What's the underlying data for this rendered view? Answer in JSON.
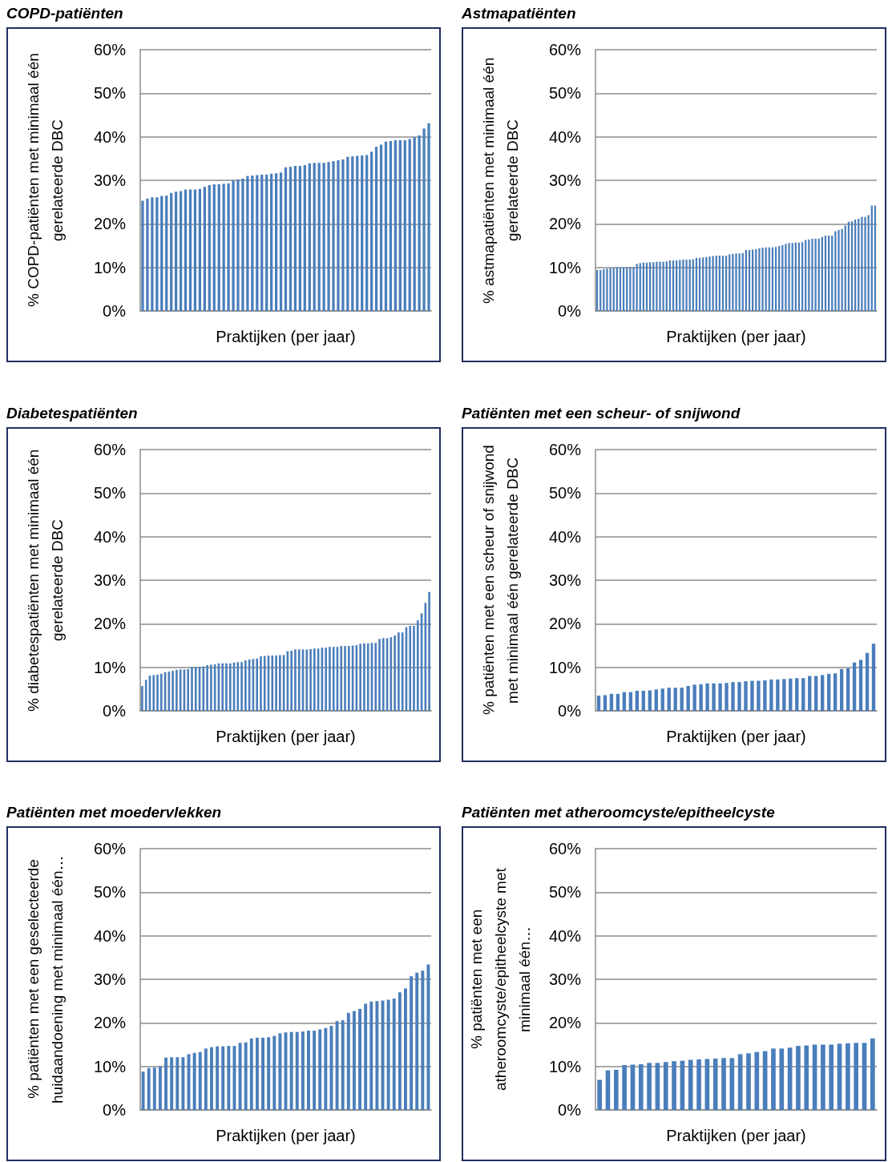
{
  "chart_data": [
    {
      "type": "bar",
      "title": "COPD-patiënten",
      "ylabel": "% COPD-patiënten met minimaal één gerelateerde DBC",
      "xlabel": "Praktijken (per jaar)",
      "color": "#4a7ebb",
      "grid": "y",
      "ylim": [
        0,
        60
      ],
      "yticks": [
        {
          "value": 0,
          "label": "0%"
        },
        {
          "value": 10,
          "label": "10%"
        },
        {
          "value": 20,
          "label": "20%"
        },
        {
          "value": 30,
          "label": "30%"
        },
        {
          "value": 40,
          "label": "40%"
        },
        {
          "value": 50,
          "label": "50%"
        },
        {
          "value": 60,
          "label": "60%"
        }
      ],
      "categories": [
        null,
        null,
        null,
        null,
        null,
        null,
        null,
        null,
        null,
        null,
        null,
        null,
        null,
        null,
        null,
        null,
        null,
        null,
        null,
        null,
        null,
        null,
        null,
        null,
        null,
        null,
        null,
        null,
        null,
        null,
        null,
        null,
        null,
        null,
        null,
        null,
        null,
        null,
        null,
        null,
        null,
        null,
        null,
        null,
        null,
        null,
        null,
        null,
        null,
        null,
        null,
        null,
        null,
        null,
        null,
        null,
        null,
        null,
        null,
        null,
        null
      ],
      "values": [
        25.3,
        25.8,
        26.1,
        26.1,
        26.4,
        26.5,
        27.1,
        27.4,
        27.5,
        27.9,
        27.9,
        27.9,
        28.0,
        28.5,
        28.9,
        29.1,
        29.1,
        29.2,
        29.3,
        30.0,
        30.2,
        30.4,
        31.0,
        31.1,
        31.2,
        31.3,
        31.3,
        31.5,
        31.6,
        31.8,
        33.0,
        33.1,
        33.3,
        33.3,
        33.5,
        33.9,
        34.0,
        34.0,
        34.0,
        34.2,
        34.4,
        34.6,
        34.8,
        35.4,
        35.5,
        35.6,
        35.7,
        35.8,
        36.6,
        37.7,
        38.2,
        38.9,
        39.0,
        39.2,
        39.2,
        39.2,
        39.5,
        39.9,
        40.3,
        41.9,
        43.1
      ]
    },
    {
      "type": "bar",
      "title": "Astmapatiënten",
      "ylabel": "% astmapatiënten met minimaal één gerelateerde DBC",
      "xlabel": "Praktijken (per jaar)",
      "color": "#4a7ebb",
      "grid": "y",
      "ylim": [
        0,
        60
      ],
      "yticks": [
        {
          "value": 0,
          "label": "0%"
        },
        {
          "value": 10,
          "label": "10%"
        },
        {
          "value": 20,
          "label": "20%"
        },
        {
          "value": 30,
          "label": "30%"
        },
        {
          "value": 40,
          "label": "40%"
        },
        {
          "value": 50,
          "label": "50%"
        },
        {
          "value": 60,
          "label": "60%"
        }
      ],
      "categories": [
        null,
        null,
        null,
        null,
        null,
        null,
        null,
        null,
        null,
        null,
        null,
        null,
        null,
        null,
        null,
        null,
        null,
        null,
        null,
        null,
        null,
        null,
        null,
        null,
        null,
        null,
        null,
        null,
        null,
        null,
        null,
        null,
        null,
        null,
        null,
        null,
        null,
        null,
        null,
        null,
        null,
        null,
        null,
        null,
        null,
        null,
        null,
        null,
        null,
        null,
        null,
        null,
        null,
        null,
        null,
        null,
        null,
        null,
        null,
        null,
        null,
        null,
        null,
        null,
        null,
        null,
        null,
        null,
        null,
        null,
        null,
        null,
        null,
        null,
        null,
        null,
        null,
        null,
        null,
        null,
        null,
        null,
        null,
        null,
        null
      ],
      "values": [
        9.4,
        9.4,
        9.6,
        9.7,
        9.8,
        9.9,
        10.0,
        10.0,
        10.0,
        10.0,
        10.0,
        10.1,
        10.8,
        11.0,
        11.1,
        11.1,
        11.2,
        11.2,
        11.3,
        11.3,
        11.3,
        11.4,
        11.6,
        11.6,
        11.6,
        11.7,
        11.8,
        11.8,
        11.8,
        11.9,
        12.2,
        12.2,
        12.3,
        12.4,
        12.5,
        12.6,
        12.7,
        12.7,
        12.7,
        12.7,
        13.0,
        13.1,
        13.2,
        13.2,
        13.3,
        14.0,
        14.0,
        14.1,
        14.2,
        14.4,
        14.5,
        14.6,
        14.6,
        14.6,
        14.7,
        14.9,
        15.1,
        15.4,
        15.6,
        15.6,
        15.7,
        15.7,
        15.8,
        16.3,
        16.4,
        16.6,
        16.6,
        16.6,
        17.0,
        17.3,
        17.3,
        17.3,
        18.3,
        18.6,
        18.8,
        19.6,
        20.5,
        20.6,
        21.0,
        21.2,
        21.6,
        21.6,
        22.0,
        24.2,
        24.2
      ]
    },
    {
      "type": "bar",
      "title": "Diabetespatiënten",
      "ylabel": "% diabetespatiënten met minimaal één gerelateerde DBC",
      "xlabel": "Praktijken (per jaar)",
      "color": "#4a7ebb",
      "grid": "y",
      "ylim": [
        0,
        60
      ],
      "yticks": [
        {
          "value": 0,
          "label": "0%"
        },
        {
          "value": 10,
          "label": "10%"
        },
        {
          "value": 20,
          "label": "20%"
        },
        {
          "value": 30,
          "label": "30%"
        },
        {
          "value": 40,
          "label": "40%"
        },
        {
          "value": 50,
          "label": "50%"
        },
        {
          "value": 60,
          "label": "60%"
        }
      ],
      "categories": [
        null,
        null,
        null,
        null,
        null,
        null,
        null,
        null,
        null,
        null,
        null,
        null,
        null,
        null,
        null,
        null,
        null,
        null,
        null,
        null,
        null,
        null,
        null,
        null,
        null,
        null,
        null,
        null,
        null,
        null,
        null,
        null,
        null,
        null,
        null,
        null,
        null,
        null,
        null,
        null,
        null,
        null,
        null,
        null,
        null,
        null,
        null,
        null,
        null,
        null,
        null,
        null,
        null,
        null,
        null,
        null,
        null,
        null,
        null,
        null,
        null,
        null,
        null,
        null,
        null,
        null,
        null,
        null,
        null,
        null,
        null,
        null,
        null,
        null,
        null,
        null
      ],
      "values": [
        5.7,
        7.1,
        8.1,
        8.2,
        8.3,
        8.5,
        8.9,
        9.0,
        9.2,
        9.4,
        9.5,
        9.5,
        9.6,
        10.1,
        10.1,
        10.1,
        10.2,
        10.5,
        10.6,
        10.7,
        10.9,
        10.9,
        10.9,
        10.9,
        11.1,
        11.2,
        11.2,
        11.6,
        11.8,
        11.9,
        12.0,
        12.5,
        12.6,
        12.7,
        12.7,
        12.7,
        12.8,
        12.8,
        13.7,
        13.8,
        14.1,
        14.1,
        14.1,
        14.1,
        14.2,
        14.3,
        14.3,
        14.5,
        14.5,
        14.7,
        14.7,
        14.7,
        14.9,
        14.9,
        14.9,
        15.0,
        15.1,
        15.4,
        15.5,
        15.5,
        15.6,
        15.6,
        16.5,
        16.7,
        16.7,
        16.9,
        17.3,
        18.0,
        18.0,
        19.2,
        19.5,
        19.5,
        20.8,
        22.4,
        24.8,
        27.3
      ]
    },
    {
      "type": "bar",
      "title": "Patiënten met een scheur- of snijwond",
      "ylabel": "% patiënten met een scheur of snijwond met minimaal één gerelateerde DBC",
      "xlabel": "Praktijken (per jaar)",
      "color": "#4a7ebb",
      "grid": "y",
      "ylim": [
        0,
        60
      ],
      "yticks": [
        {
          "value": 0,
          "label": "0%"
        },
        {
          "value": 10,
          "label": "10%"
        },
        {
          "value": 20,
          "label": "20%"
        },
        {
          "value": 30,
          "label": "30%"
        },
        {
          "value": 40,
          "label": "40%"
        },
        {
          "value": 50,
          "label": "50%"
        },
        {
          "value": 60,
          "label": "60%"
        }
      ],
      "categories": [
        null,
        null,
        null,
        null,
        null,
        null,
        null,
        null,
        null,
        null,
        null,
        null,
        null,
        null,
        null,
        null,
        null,
        null,
        null,
        null,
        null,
        null,
        null,
        null,
        null,
        null,
        null,
        null,
        null,
        null,
        null,
        null,
        null,
        null,
        null,
        null,
        null,
        null,
        null,
        null,
        null,
        null,
        null,
        null
      ],
      "values": [
        3.5,
        3.6,
        3.9,
        3.9,
        4.3,
        4.3,
        4.6,
        4.6,
        4.7,
        4.9,
        5.1,
        5.3,
        5.3,
        5.3,
        5.7,
        6.0,
        6.1,
        6.3,
        6.3,
        6.3,
        6.4,
        6.6,
        6.6,
        6.8,
        6.9,
        6.9,
        7.0,
        7.2,
        7.2,
        7.3,
        7.4,
        7.5,
        7.5,
        8.0,
        8.0,
        8.2,
        8.5,
        8.6,
        9.6,
        9.8,
        11.1,
        11.7,
        13.3,
        15.4
      ]
    },
    {
      "type": "bar",
      "title": "Patiënten met moedervlekken",
      "ylabel": "% patiënten met een geselecteerde huidaandoening met minimaal één…",
      "xlabel": "Praktijken (per jaar)",
      "color": "#4a7ebb",
      "grid": "y",
      "ylim": [
        0,
        60
      ],
      "yticks": [
        {
          "value": 0,
          "label": "0%"
        },
        {
          "value": 10,
          "label": "10%"
        },
        {
          "value": 20,
          "label": "20%"
        },
        {
          "value": 30,
          "label": "30%"
        },
        {
          "value": 40,
          "label": "40%"
        },
        {
          "value": 50,
          "label": "50%"
        },
        {
          "value": 60,
          "label": "60%"
        }
      ],
      "categories": [
        null,
        null,
        null,
        null,
        null,
        null,
        null,
        null,
        null,
        null,
        null,
        null,
        null,
        null,
        null,
        null,
        null,
        null,
        null,
        null,
        null,
        null,
        null,
        null,
        null,
        null,
        null,
        null,
        null,
        null,
        null,
        null,
        null,
        null,
        null,
        null,
        null,
        null,
        null,
        null,
        null,
        null,
        null,
        null,
        null,
        null,
        null,
        null,
        null,
        null,
        null
      ],
      "values": [
        8.8,
        9.6,
        9.7,
        10.0,
        12.0,
        12.1,
        12.1,
        12.1,
        12.8,
        13.1,
        13.3,
        14.1,
        14.4,
        14.6,
        14.6,
        14.7,
        14.7,
        15.4,
        15.5,
        16.4,
        16.6,
        16.6,
        16.7,
        17.0,
        17.6,
        17.8,
        17.9,
        17.9,
        18.0,
        18.2,
        18.2,
        18.5,
        18.8,
        19.3,
        20.4,
        20.6,
        22.3,
        22.7,
        23.2,
        24.4,
        24.9,
        25.0,
        25.1,
        25.3,
        25.6,
        27.0,
        27.9,
        30.7,
        31.5,
        32.0,
        33.4
      ]
    },
    {
      "type": "bar",
      "title": "Patiënten met atheroomcyste/epitheelcyste",
      "ylabel": "% patiënten met een atheroomcyste/epitheelcyste met minimaal één…",
      "xlabel": "Praktijken (per jaar)",
      "color": "#4a7ebb",
      "grid": "y",
      "ylim": [
        0,
        60
      ],
      "yticks": [
        {
          "value": 0,
          "label": "0%"
        },
        {
          "value": 10,
          "label": "10%"
        },
        {
          "value": 20,
          "label": "20%"
        },
        {
          "value": 30,
          "label": "30%"
        },
        {
          "value": 40,
          "label": "40%"
        },
        {
          "value": 50,
          "label": "50%"
        },
        {
          "value": 60,
          "label": "60%"
        }
      ],
      "categories": [
        null,
        null,
        null,
        null,
        null,
        null,
        null,
        null,
        null,
        null,
        null,
        null,
        null,
        null,
        null,
        null,
        null,
        null,
        null,
        null,
        null,
        null,
        null,
        null,
        null,
        null,
        null,
        null,
        null,
        null,
        null,
        null,
        null,
        null
      ],
      "values": [
        6.9,
        9.1,
        9.2,
        10.3,
        10.4,
        10.5,
        10.8,
        10.8,
        11.0,
        11.2,
        11.3,
        11.5,
        11.6,
        11.7,
        11.8,
        11.9,
        11.9,
        12.8,
        13.0,
        13.3,
        13.5,
        14.1,
        14.1,
        14.3,
        14.7,
        14.8,
        15.0,
        15.0,
        15.0,
        15.2,
        15.3,
        15.4,
        15.4,
        16.4
      ]
    }
  ]
}
